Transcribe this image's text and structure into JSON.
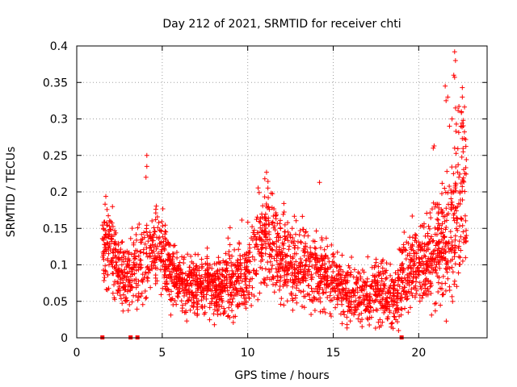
{
  "chart_data": {
    "type": "scatter",
    "title": "Day 212 of 2021, SRMTID for receiver chti",
    "xlabel": "GPS time / hours",
    "ylabel": "SRMTID / TECUs",
    "xlim": [
      0,
      24
    ],
    "ylim": [
      0,
      0.4
    ],
    "xticks": [
      0,
      5,
      10,
      15,
      20
    ],
    "yticks": [
      0,
      0.05,
      0.1,
      0.15,
      0.2,
      0.25,
      0.3,
      0.35,
      0.4
    ],
    "xtick_labels": [
      "0",
      "5",
      "10",
      "15",
      "20"
    ],
    "ytick_labels": [
      "0",
      "0.05",
      "0.1",
      "0.15",
      "0.2",
      "0.25",
      "0.3",
      "0.35",
      "0.4"
    ],
    "grid": true,
    "marker": "plus",
    "series_color": "#ff0000",
    "data_gap_markers": [
      1.5,
      3.15,
      3.55,
      19.0
    ],
    "trend_profile": {
      "hours": [
        1.5,
        2.0,
        2.5,
        3.0,
        3.5,
        4.0,
        4.5,
        5.0,
        5.5,
        6.0,
        6.5,
        7.0,
        7.5,
        8.0,
        8.5,
        9.0,
        9.5,
        10.0,
        10.5,
        11.0,
        11.5,
        12.0,
        12.5,
        13.0,
        13.5,
        14.0,
        14.5,
        15.0,
        15.5,
        16.0,
        16.5,
        17.0,
        17.5,
        18.0,
        18.5,
        19.0,
        19.5,
        20.0,
        20.5,
        21.0,
        21.5,
        22.0,
        22.5,
        22.8
      ],
      "median": [
        0.14,
        0.12,
        0.09,
        0.085,
        0.09,
        0.11,
        0.12,
        0.11,
        0.09,
        0.075,
        0.07,
        0.075,
        0.07,
        0.07,
        0.075,
        0.08,
        0.085,
        0.09,
        0.12,
        0.14,
        0.12,
        0.11,
        0.1,
        0.1,
        0.095,
        0.09,
        0.085,
        0.08,
        0.07,
        0.06,
        0.055,
        0.06,
        0.07,
        0.065,
        0.05,
        0.08,
        0.1,
        0.1,
        0.11,
        0.12,
        0.13,
        0.15,
        0.19,
        0.21
      ],
      "spread": [
        0.03,
        0.03,
        0.025,
        0.025,
        0.03,
        0.035,
        0.035,
        0.03,
        0.025,
        0.02,
        0.02,
        0.02,
        0.02,
        0.02,
        0.025,
        0.03,
        0.03,
        0.03,
        0.035,
        0.04,
        0.035,
        0.03,
        0.03,
        0.03,
        0.03,
        0.03,
        0.025,
        0.025,
        0.02,
        0.02,
        0.02,
        0.02,
        0.025,
        0.025,
        0.02,
        0.03,
        0.03,
        0.03,
        0.035,
        0.04,
        0.045,
        0.06,
        0.07,
        0.08
      ]
    },
    "notable_points": [
      {
        "x": 4.1,
        "y": 0.25
      },
      {
        "x": 4.1,
        "y": 0.235
      },
      {
        "x": 4.05,
        "y": 0.22
      },
      {
        "x": 11.1,
        "y": 0.227
      },
      {
        "x": 11.0,
        "y": 0.218
      },
      {
        "x": 14.2,
        "y": 0.213
      },
      {
        "x": 20.9,
        "y": 0.263
      },
      {
        "x": 20.85,
        "y": 0.26
      },
      {
        "x": 21.7,
        "y": 0.33
      },
      {
        "x": 21.6,
        "y": 0.325
      },
      {
        "x": 21.55,
        "y": 0.345
      },
      {
        "x": 21.8,
        "y": 0.29
      },
      {
        "x": 22.1,
        "y": 0.392
      },
      {
        "x": 22.15,
        "y": 0.38
      },
      {
        "x": 22.05,
        "y": 0.36
      },
      {
        "x": 22.1,
        "y": 0.357
      },
      {
        "x": 22.15,
        "y": 0.315
      },
      {
        "x": 22.2,
        "y": 0.293
      },
      {
        "x": 22.55,
        "y": 0.343
      },
      {
        "x": 22.55,
        "y": 0.33
      },
      {
        "x": 22.5,
        "y": 0.31
      },
      {
        "x": 22.6,
        "y": 0.298
      },
      {
        "x": 22.55,
        "y": 0.273
      },
      {
        "x": 22.6,
        "y": 0.255
      },
      {
        "x": 22.1,
        "y": 0.26
      },
      {
        "x": 21.65,
        "y": 0.228
      },
      {
        "x": 18.5,
        "y": 0.013
      },
      {
        "x": 18.45,
        "y": 0.02
      },
      {
        "x": 16.0,
        "y": 0.023
      },
      {
        "x": 8.05,
        "y": 0.018
      }
    ]
  }
}
